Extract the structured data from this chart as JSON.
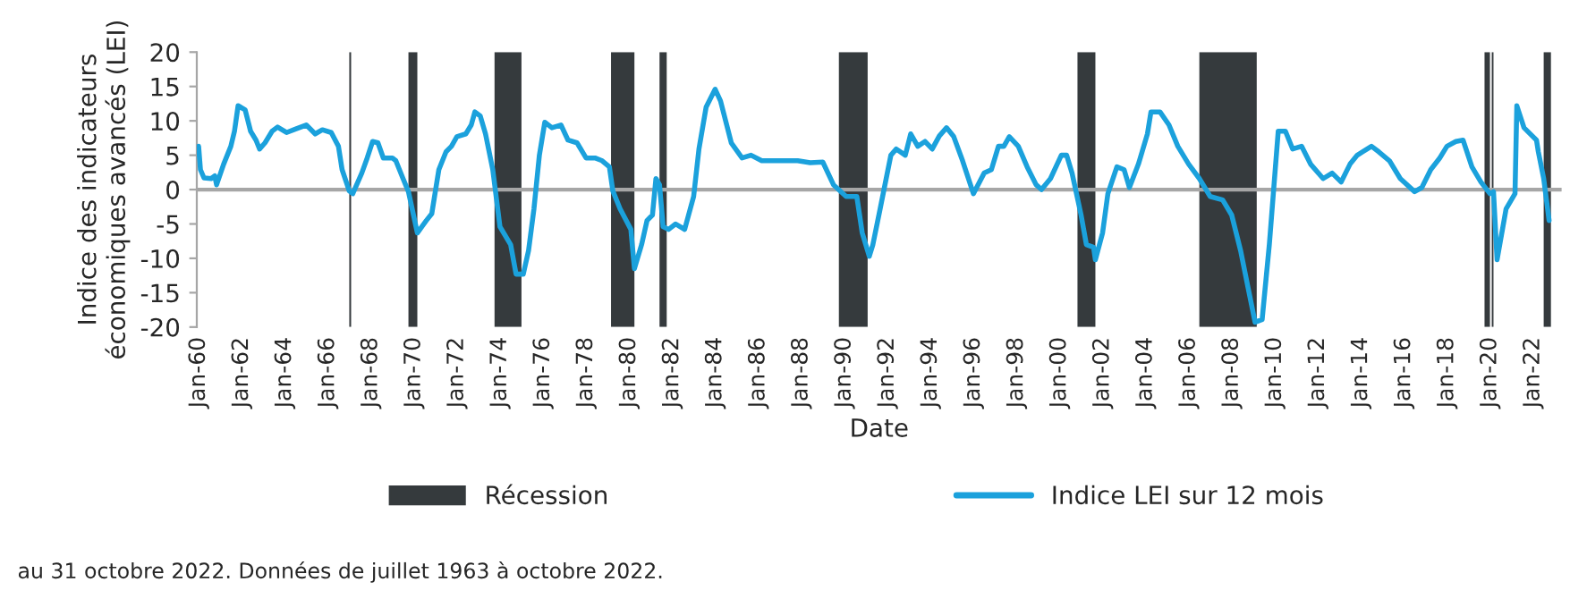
{
  "chart_data": {
    "type": "line",
    "ylabel": "Indice des indicateurs\néconomiques avancés (LEI)",
    "xlabel": "Date",
    "annotations": [
      "au 31 octobre 2022. Données de juillet 1963 à octobre 2022."
    ],
    "xlim": [
      "1959-12",
      "2023-05"
    ],
    "xticks": [
      {
        "value": "1960-01",
        "label": "Jan-60"
      },
      {
        "value": "1962-01",
        "label": "Jan-62"
      },
      {
        "value": "1964-01",
        "label": "Jan-64"
      },
      {
        "value": "1966-01",
        "label": "Jan-66"
      },
      {
        "value": "1968-01",
        "label": "Jan-68"
      },
      {
        "value": "1970-01",
        "label": "Jan-70"
      },
      {
        "value": "1972-01",
        "label": "Jan-72"
      },
      {
        "value": "1974-01",
        "label": "Jan-74"
      },
      {
        "value": "1976-01",
        "label": "Jan-76"
      },
      {
        "value": "1978-01",
        "label": "Jan-78"
      },
      {
        "value": "1980-01",
        "label": "Jan-80"
      },
      {
        "value": "1982-01",
        "label": "Jan-82"
      },
      {
        "value": "1984-01",
        "label": "Jan-84"
      },
      {
        "value": "1986-01",
        "label": "Jan-86"
      },
      {
        "value": "1988-01",
        "label": "Jan-88"
      },
      {
        "value": "1990-01",
        "label": "Jan-90"
      },
      {
        "value": "1992-01",
        "label": "Jan-92"
      },
      {
        "value": "1994-01",
        "label": "Jan-94"
      },
      {
        "value": "1996-01",
        "label": "Jan-96"
      },
      {
        "value": "1998-01",
        "label": "Jan-98"
      },
      {
        "value": "2000-01",
        "label": "Jan-00"
      },
      {
        "value": "2002-01",
        "label": "Jan-02"
      },
      {
        "value": "2004-01",
        "label": "Jan-04"
      },
      {
        "value": "2006-01",
        "label": "Jan-06"
      },
      {
        "value": "2008-01",
        "label": "Jan-08"
      },
      {
        "value": "2010-01",
        "label": "Jan-10"
      },
      {
        "value": "2012-01",
        "label": "Jan-12"
      },
      {
        "value": "2014-01",
        "label": "Jan-14"
      },
      {
        "value": "2016-01",
        "label": "Jan-16"
      },
      {
        "value": "2018-01",
        "label": "Jan-18"
      },
      {
        "value": "2020-01",
        "label": "Jan-20"
      },
      {
        "value": "2022-01",
        "label": "Jan-22"
      }
    ],
    "ylim": [
      -20,
      20
    ],
    "yticks": [
      -20,
      -15,
      -10,
      -5,
      0,
      5,
      10,
      15,
      20
    ],
    "grid": false,
    "legend": "bottom",
    "ref_lines": [
      {
        "axis": "y",
        "value": 0,
        "color": "#a6a6a6"
      }
    ],
    "bands": [
      {
        "axis": "x",
        "from": "1967-01",
        "to": "1967-02",
        "label": "Récession",
        "color": "#353a3d"
      },
      {
        "axis": "x",
        "from": "1969-10",
        "to": "1970-03",
        "color": "#353a3d"
      },
      {
        "axis": "x",
        "from": "1973-10",
        "to": "1975-01",
        "color": "#353a3d"
      },
      {
        "axis": "x",
        "from": "1979-03",
        "to": "1980-04",
        "color": "#353a3d"
      },
      {
        "axis": "x",
        "from": "1981-06",
        "to": "1981-10",
        "color": "#353a3d"
      },
      {
        "axis": "x",
        "from": "1989-10",
        "to": "1991-02",
        "color": "#353a3d"
      },
      {
        "axis": "x",
        "from": "2000-11",
        "to": "2001-09",
        "color": "#353a3d"
      },
      {
        "axis": "x",
        "from": "2006-07",
        "to": "2009-03",
        "color": "#353a3d"
      },
      {
        "axis": "x",
        "from": "2019-10",
        "to": "2020-01",
        "color": "#353a3d"
      },
      {
        "axis": "x",
        "from": "2020-02",
        "to": "2020-03",
        "color": "#353a3d"
      },
      {
        "axis": "x",
        "from": "2022-07",
        "to": "2022-11",
        "color": "#353a3d"
      }
    ],
    "series": [
      {
        "name": "Indice LEI sur 12 mois",
        "color": "#1ba1dc",
        "x": [
          "1960-01",
          "1960-02",
          "1960-04",
          "1960-08",
          "1960-10",
          "1960-11",
          "1961-03",
          "1961-07",
          "1961-09",
          "1961-11",
          "1962-03",
          "1962-06",
          "1962-09",
          "1962-11",
          "1963-02",
          "1963-06",
          "1963-09",
          "1964-02",
          "1964-07",
          "1965-01",
          "1965-06",
          "1965-10",
          "1966-03",
          "1966-07",
          "1966-09",
          "1967-01",
          "1967-03",
          "1967-08",
          "1967-11",
          "1968-02",
          "1968-05",
          "1968-08",
          "1969-01",
          "1969-03",
          "1969-07",
          "1969-10",
          "1970-03",
          "1970-08",
          "1970-11",
          "1971-03",
          "1971-07",
          "1971-10",
          "1972-01",
          "1972-06",
          "1972-09",
          "1972-11",
          "1973-02",
          "1973-05",
          "1973-09",
          "1974-01",
          "1974-07",
          "1974-10",
          "1975-02",
          "1975-05",
          "1975-08",
          "1975-11",
          "1976-02",
          "1976-06",
          "1976-11",
          "1977-03",
          "1977-08",
          "1978-01",
          "1978-06",
          "1978-10",
          "1979-02",
          "1979-04",
          "1979-08",
          "1980-02",
          "1980-04",
          "1980-08",
          "1980-11",
          "1981-02",
          "1981-04",
          "1981-06",
          "1981-08",
          "1981-11",
          "1982-03",
          "1982-08",
          "1983-01",
          "1983-04",
          "1983-08",
          "1984-01",
          "1984-04",
          "1984-10",
          "1985-04",
          "1985-09",
          "1986-03",
          "1987-01",
          "1987-11",
          "1988-06",
          "1989-01",
          "1989-07",
          "1990-02",
          "1990-08",
          "1990-11",
          "1991-03",
          "1991-05",
          "1991-09",
          "1992-03",
          "1992-06",
          "1992-11",
          "1993-02",
          "1993-06",
          "1993-10",
          "1994-02",
          "1994-06",
          "1994-10",
          "1995-02",
          "1995-07",
          "1996-01",
          "1996-07",
          "1996-11",
          "1997-03",
          "1997-06",
          "1997-09",
          "1998-02",
          "1998-07",
          "1998-12",
          "1999-03",
          "1999-08",
          "2000-02",
          "2000-05",
          "2000-08",
          "2001-01",
          "2001-04",
          "2001-08",
          "2001-09",
          "2002-01",
          "2002-04",
          "2002-09",
          "2003-01",
          "2003-04",
          "2003-09",
          "2004-02",
          "2004-04",
          "2004-09",
          "2005-02",
          "2005-07",
          "2006-01",
          "2006-07",
          "2007-01",
          "2007-08",
          "2008-01",
          "2008-06",
          "2008-10",
          "2009-02",
          "2009-06",
          "2009-10",
          "2010-03",
          "2010-07",
          "2010-11",
          "2011-04",
          "2011-09",
          "2012-04",
          "2012-09",
          "2013-02",
          "2013-07",
          "2013-11",
          "2014-07",
          "2014-11",
          "2015-05",
          "2015-11",
          "2016-07",
          "2016-11",
          "2017-04",
          "2017-09",
          "2018-01",
          "2018-06",
          "2018-10",
          "2019-03",
          "2019-08",
          "2020-01",
          "2020-03",
          "2020-05",
          "2020-10",
          "2021-03",
          "2021-04",
          "2021-08",
          "2022-03",
          "2022-04",
          "2022-07",
          "2022-10"
        ],
        "values": [
          6.3,
          2.9,
          1.7,
          1.6,
          2.0,
          0.7,
          3.7,
          6.3,
          8.5,
          12.2,
          11.6,
          8.5,
          7.2,
          5.9,
          6.8,
          8.5,
          9.1,
          8.3,
          8.8,
          9.4,
          8.1,
          8.7,
          8.3,
          6.3,
          2.9,
          -0.2,
          -0.6,
          2.4,
          4.6,
          7.0,
          6.8,
          4.6,
          4.6,
          4.2,
          1.6,
          -0.3,
          -6.3,
          -4.5,
          -3.5,
          2.9,
          5.5,
          6.3,
          7.7,
          8.1,
          9.4,
          11.3,
          10.7,
          8.1,
          2.9,
          -5.4,
          -8.0,
          -12.3,
          -12.3,
          -8.9,
          -2.8,
          5.0,
          9.8,
          9.0,
          9.4,
          7.2,
          6.8,
          4.6,
          4.6,
          4.2,
          3.3,
          -0.2,
          -2.8,
          -5.8,
          -11.5,
          -8.0,
          -4.5,
          -3.7,
          1.6,
          0.7,
          -5.4,
          -5.8,
          -5.0,
          -5.8,
          -1.0,
          5.9,
          12.0,
          14.6,
          12.9,
          6.8,
          4.6,
          5.0,
          4.2,
          4.2,
          4.2,
          3.9,
          4.0,
          0.7,
          -1.0,
          -1.0,
          -6.3,
          -9.7,
          -8.0,
          -2.8,
          5.0,
          5.9,
          5.0,
          8.1,
          6.3,
          7.0,
          5.9,
          7.8,
          9.0,
          7.7,
          4.2,
          -0.6,
          2.4,
          2.9,
          6.3,
          6.3,
          7.7,
          6.3,
          3.3,
          0.7,
          0.0,
          1.6,
          5.0,
          5.0,
          2.4,
          -3.7,
          -8.0,
          -8.4,
          -10.2,
          -6.3,
          -0.6,
          3.3,
          2.9,
          0.3,
          3.7,
          8.1,
          11.3,
          11.3,
          9.4,
          6.3,
          3.7,
          1.6,
          -1.0,
          -1.5,
          -3.7,
          -8.9,
          -14.1,
          -19.3,
          -18.9,
          -8.0,
          8.5,
          8.5,
          5.9,
          6.3,
          3.7,
          1.6,
          2.4,
          1.1,
          3.7,
          5.0,
          6.3,
          5.5,
          4.2,
          1.6,
          -0.3,
          0.3,
          2.9,
          4.6,
          6.3,
          7.0,
          7.2,
          3.3,
          1.1,
          -0.6,
          -0.3,
          -10.2,
          -2.8,
          -0.6,
          12.2,
          9.0,
          7.2,
          5.5,
          1.6,
          -4.5
        ]
      }
    ]
  }
}
